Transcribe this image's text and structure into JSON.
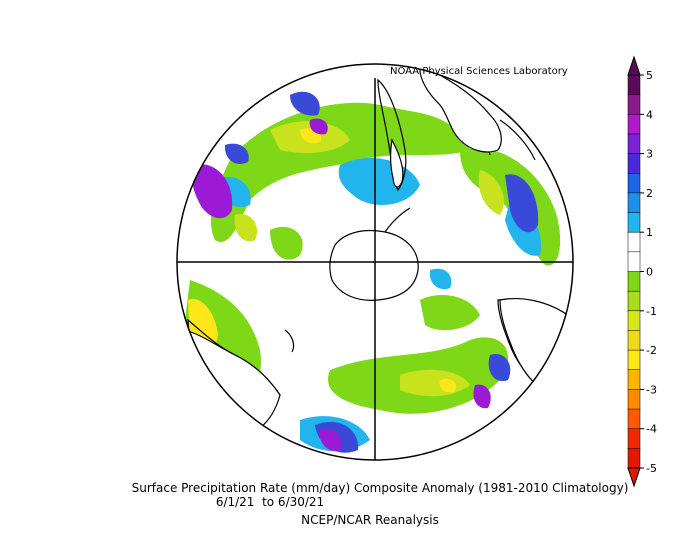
{
  "credit": "NOAA Physical Sciences Laboratory",
  "title": "Surface Precipitation Rate (mm/day) Composite Anomaly (1981-2010 Climatology)",
  "period": "6/1/21  to 6/30/21",
  "source": "NCEP/NCAR Reanalysis",
  "colorbar": {
    "tick_labels": [
      "5",
      "4",
      "3",
      "2",
      "1",
      "0",
      "-1",
      "-2",
      "-3",
      "-4",
      "-5"
    ],
    "colors": [
      "#5a0a5a",
      "#8b1a8b",
      "#b01ac8",
      "#7b22d6",
      "#4a2ad8",
      "#1e64e6",
      "#1e90e8",
      "#22b4ec",
      "#ffffff",
      "#ffffff",
      "#7ed818",
      "#a8dc1c",
      "#d8e61e",
      "#f0d81c",
      "#ffe619",
      "#ffb400",
      "#ff8a00",
      "#ff5a00",
      "#f02a00",
      "#e01a00"
    ]
  },
  "colors": {
    "wet_strong": "#9b1ad6",
    "wet_mid": "#3a4ad8",
    "wet_light": "#22b4ec",
    "dry_light": "#7ed818",
    "dry_mid": "#c8e21e",
    "dry_strong": "#ffe619"
  }
}
